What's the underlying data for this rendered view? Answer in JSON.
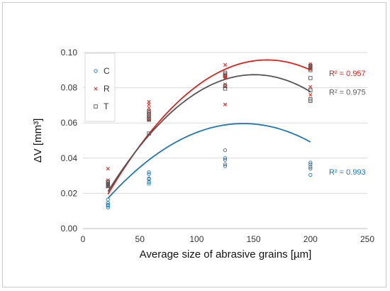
{
  "chart_data": {
    "type": "scatter",
    "xlabel": "Average size  of abrasive grains [µm]",
    "ylabel": "ΔV [mm³]",
    "xlim": [
      0,
      250
    ],
    "ylim": [
      0,
      0.1
    ],
    "x_ticks": [
      "0",
      "50",
      "100",
      "150",
      "200",
      "250"
    ],
    "y_ticks": [
      "0.00",
      "0.02",
      "0.04",
      "0.06",
      "0.08",
      "0.10"
    ],
    "grid": "horizontal",
    "legend_position": "top-left",
    "series": [
      {
        "name": "C",
        "marker": "circle",
        "color": "#1f77b4",
        "points": [
          [
            22,
            0.0165
          ],
          [
            22,
            0.0145
          ],
          [
            22,
            0.0135
          ],
          [
            22,
            0.013
          ],
          [
            22,
            0.012
          ],
          [
            58,
            0.032
          ],
          [
            58,
            0.031
          ],
          [
            58,
            0.0285
          ],
          [
            58,
            0.028
          ],
          [
            58,
            0.0265
          ],
          [
            58,
            0.0255
          ],
          [
            125,
            0.0445
          ],
          [
            125,
            0.04
          ],
          [
            125,
            0.039
          ],
          [
            125,
            0.0365
          ],
          [
            125,
            0.0355
          ],
          [
            200,
            0.0375
          ],
          [
            200,
            0.0365
          ],
          [
            200,
            0.035
          ],
          [
            200,
            0.034
          ],
          [
            200,
            0.0305
          ]
        ],
        "trend": [
          -3e-06,
          0.000846,
          -0.0
        ],
        "r2_label": "R² = 0.993",
        "r2_color": "#1f77b4"
      },
      {
        "name": "R",
        "marker": "x",
        "color": "#e0201b",
        "points": [
          [
            22,
            0.034
          ],
          [
            22,
            0.0275
          ],
          [
            22,
            0.026
          ],
          [
            22,
            0.025
          ],
          [
            22,
            0.024
          ],
          [
            58,
            0.072
          ],
          [
            58,
            0.0705
          ],
          [
            58,
            0.0685
          ],
          [
            58,
            0.067
          ],
          [
            58,
            0.0645
          ],
          [
            58,
            0.0625
          ],
          [
            58,
            0.0615
          ],
          [
            125,
            0.093
          ],
          [
            125,
            0.0875
          ],
          [
            125,
            0.0865
          ],
          [
            125,
            0.0855
          ],
          [
            125,
            0.082
          ],
          [
            125,
            0.0805
          ],
          [
            125,
            0.0705
          ],
          [
            200,
            0.0935
          ],
          [
            200,
            0.0925
          ],
          [
            200,
            0.0915
          ],
          [
            200,
            0.0905
          ],
          [
            200,
            0.0805
          ],
          [
            200,
            0.076
          ]
        ],
        "trend": [
          -3.9e-06,
          0.001262,
          -0.0063
        ],
        "r2_label": "R² = 0.957",
        "r2_color": "#e0201b"
      },
      {
        "name": "T",
        "marker": "square",
        "color": "#555555",
        "points": [
          [
            22,
            0.0265
          ],
          [
            22,
            0.0255
          ],
          [
            22,
            0.025
          ],
          [
            22,
            0.0245
          ],
          [
            22,
            0.024
          ],
          [
            58,
            0.0665
          ],
          [
            58,
            0.065
          ],
          [
            58,
            0.064
          ],
          [
            58,
            0.0625
          ],
          [
            58,
            0.062
          ],
          [
            58,
            0.054
          ],
          [
            125,
            0.0885
          ],
          [
            125,
            0.0875
          ],
          [
            125,
            0.0865
          ],
          [
            125,
            0.081
          ],
          [
            125,
            0.0795
          ],
          [
            200,
            0.0925
          ],
          [
            200,
            0.0915
          ],
          [
            200,
            0.09
          ],
          [
            200,
            0.0855
          ],
          [
            200,
            0.0785
          ],
          [
            200,
            0.0735
          ],
          [
            200,
            0.0725
          ]
        ],
        "trend": [
          -4e-06,
          0.001206,
          -0.0035
        ],
        "r2_label": "R² = 0.975",
        "r2_color": "#595959"
      }
    ]
  }
}
